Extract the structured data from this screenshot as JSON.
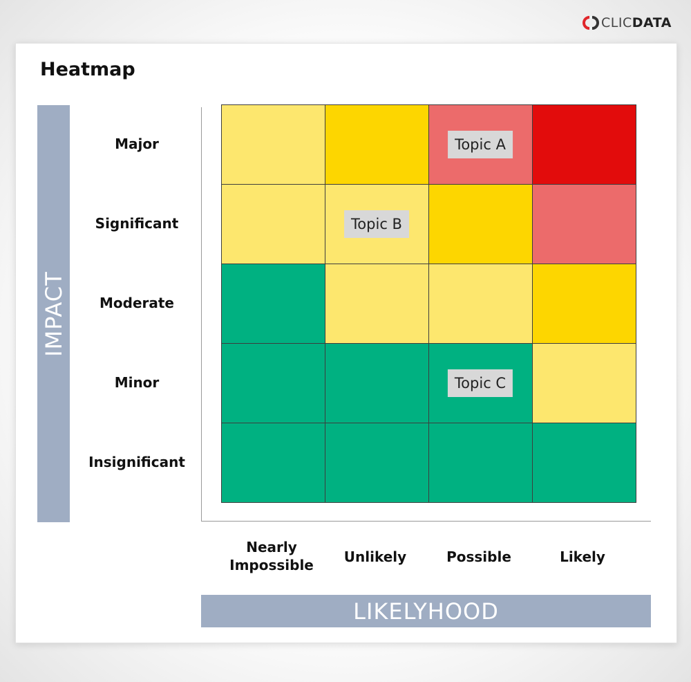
{
  "logo": {
    "light": "CLIC",
    "bold": "DATA"
  },
  "title": "Heatmap",
  "colors": {
    "green": "#00b181",
    "light_yellow": "#fde76e",
    "yellow": "#fdd600",
    "light_red": "#ec6b6b",
    "red": "#e20c0c",
    "band": "#9fadc3"
  },
  "chart_data": {
    "type": "heatmap",
    "title": "Heatmap",
    "ylabel": "IMPACT",
    "xlabel": "LIKELYHOOD",
    "rows": [
      "Major",
      "Significant",
      "Moderate",
      "Minor",
      "Insignificant"
    ],
    "columns": [
      "Nearly Impossible",
      "Unlikely",
      "Possible",
      "Likely"
    ],
    "cells": [
      [
        "light_yellow",
        "yellow",
        "light_red",
        "red"
      ],
      [
        "light_yellow",
        "light_yellow",
        "yellow",
        "light_red"
      ],
      [
        "green",
        "light_yellow",
        "light_yellow",
        "yellow"
      ],
      [
        "green",
        "green",
        "green",
        "light_yellow"
      ],
      [
        "green",
        "green",
        "green",
        "green"
      ]
    ],
    "annotations": [
      {
        "text": "Topic A",
        "row": 0,
        "col": 2
      },
      {
        "text": "Topic B",
        "row": 1,
        "col": 1
      },
      {
        "text": "Topic C",
        "row": 3,
        "col": 2
      }
    ]
  }
}
